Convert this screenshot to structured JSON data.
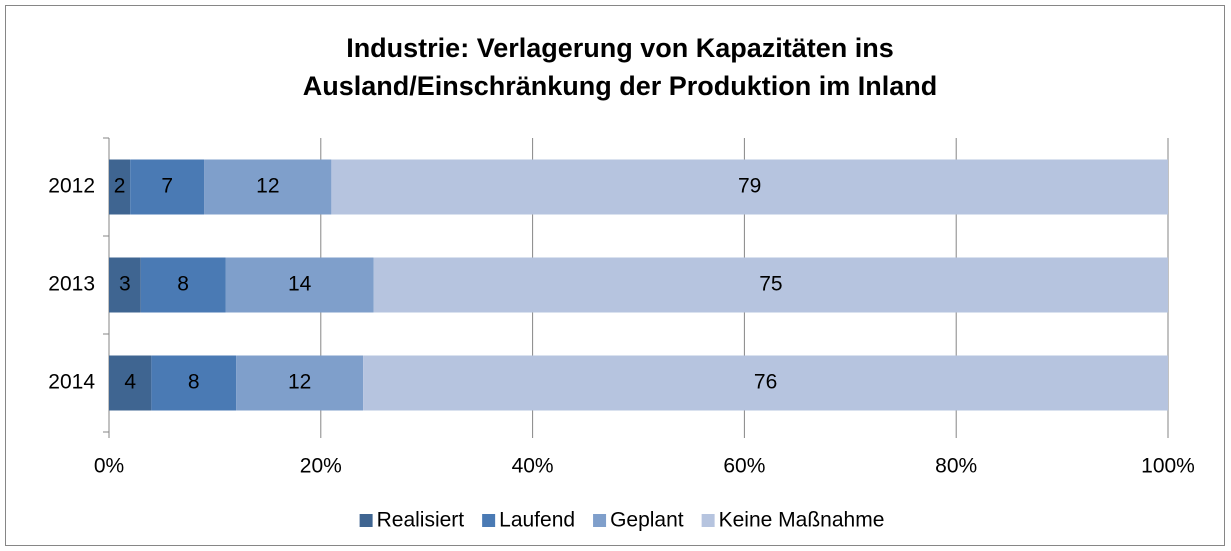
{
  "chart_data": {
    "type": "stacked_barh",
    "title": [
      "Industrie: Verlagerung von Kapazitäten ins",
      "Ausland/Einschränkung der Produktion im Inland"
    ],
    "categories": [
      "2012",
      "2013",
      "2014"
    ],
    "series": [
      {
        "name": "Realisiert",
        "color": "#3f6591",
        "values": [
          2,
          3,
          4
        ]
      },
      {
        "name": "Laufend",
        "color": "#4a7ab4",
        "values": [
          7,
          8,
          8
        ]
      },
      {
        "name": "Geplant",
        "color": "#7f9fcb",
        "values": [
          12,
          14,
          12
        ]
      },
      {
        "name": "Keine Maßnahme",
        "color": "#b6c4df",
        "values": [
          79,
          75,
          76
        ]
      }
    ],
    "xlim": [
      0,
      100
    ],
    "xticks": [
      {
        "value": 0,
        "label": "0%"
      },
      {
        "value": 20,
        "label": "20%"
      },
      {
        "value": 40,
        "label": "40%"
      },
      {
        "value": 60,
        "label": "60%"
      },
      {
        "value": 80,
        "label": "80%"
      },
      {
        "value": 100,
        "label": "100%"
      }
    ],
    "grid": true,
    "legend": "bottom"
  }
}
